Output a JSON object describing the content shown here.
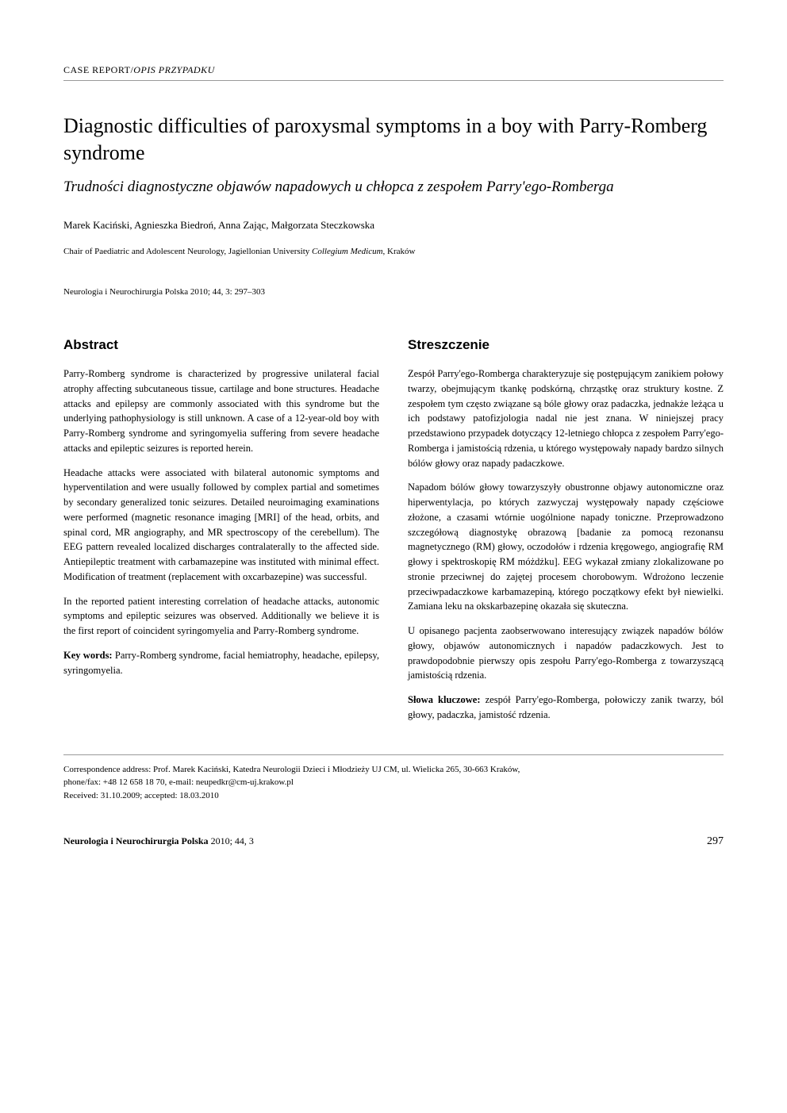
{
  "header": {
    "case_report": "CASE REPORT/",
    "opis": "OPIS PRZYPADKU"
  },
  "title": "Diagnostic difficulties of paroxysmal symptoms in a boy with Parry-Romberg syndrome",
  "subtitle": "Trudności diagnostyczne objawów napadowych u chłopca z zespołem Parry'ego-Romberga",
  "authors": "Marek Kaciński, Agnieszka Biedroń, Anna Zając, Małgorzata Steczkowska",
  "affiliation_prefix": "Chair of Paediatric and Adolescent Neurology, Jagiellonian University ",
  "affiliation_italic": "Collegium Medicum",
  "affiliation_suffix": ", Kraków",
  "journal_ref": "Neurologia i Neurochirurgia Polska 2010; 44, 3: 297–303",
  "abstract": {
    "heading": "Abstract",
    "p1": "Parry-Romberg syndrome is characterized by progressive unilateral facial atrophy affecting subcutaneous tissue, cartilage and bone structures. Headache attacks and epilepsy are commonly associated with this syndrome but the underlying pathophysiology is still unknown. A case of a 12-year-old boy with Parry-Romberg syndrome and syringomyelia suffering from severe headache attacks and epileptic seizures is reported herein.",
    "p2": "Headache attacks were associated with bilateral autonomic symptoms and hyperventilation and were usually followed by complex partial and sometimes by secondary generalized tonic seizures. Detailed neuroimaging examinations were performed (magnetic resonance imaging [MRI] of the head, orbits, and spinal cord, MR angiography, and MR spectroscopy of the cerebellum). The EEG pattern revealed localized discharges contralaterally to the affected side. Antiepileptic treatment with carbamazepine was instituted with minimal effect. Modification of treatment (replacement with oxcarbazepine) was successful.",
    "p3": "In the reported patient interesting correlation of headache attacks, autonomic symptoms and epileptic seizures was observed. Additionally we believe it is the first report of coincident syringomyelia and Parry-Romberg syndrome.",
    "keywords_label": "Key words:",
    "keywords": " Parry-Romberg syndrome, facial hemiatrophy, headache, epilepsy, syringomyelia."
  },
  "streszczenie": {
    "heading": "Streszczenie",
    "p1": "Zespół Parry'ego-Romberga charakteryzuje się postępującym zanikiem połowy twarzy, obejmującym tkankę podskórną, chrząstkę oraz struktury kostne. Z zespołem tym często związane są bóle głowy oraz padaczka, jednakże leżąca u ich podstawy patofizjologia nadal nie jest znana. W niniejszej pracy przedstawiono przypadek dotyczący 12-letniego chłopca z zespołem Parry'ego-Romberga i jamistością rdzenia, u którego występowały napady bardzo silnych bólów głowy oraz napady padaczkowe.",
    "p2": "Napadom bólów głowy towarzyszyły obustronne objawy autonomiczne oraz hiperwentylacja, po których zazwyczaj występowały napady częściowe złożone, a czasami wtórnie uogólnione napady toniczne. Przeprowadzono szczegółową diagnostykę obrazową [badanie za pomocą rezonansu magnetycznego (RM) głowy, oczodołów i rdzenia kręgowego, angiografię RM głowy i spektroskopię RM móżdżku]. EEG wykazał zmiany zlokalizowane po stronie przeciwnej do zajętej procesem chorobowym. Wdrożono leczenie przeciwpadaczkowe karbamazepiną, którego początkowy efekt był niewielki. Zamiana leku na okskarbazepinę okazała się skuteczna.",
    "p3": "U opisanego pacjenta zaobserwowano interesujący związek napadów bólów głowy, objawów autonomicznych i napadów padaczkowych. Jest to prawdopodobnie pierwszy opis zespołu Parry'ego-Romberga z towarzyszącą jamistością rdzenia.",
    "keywords_label": "Słowa kluczowe:",
    "keywords": " zespół Parry'ego-Romberga, połowiczy zanik twarzy, ból głowy, padaczka, jamistość rdzenia."
  },
  "correspondence": {
    "line1": "Correspondence address: Prof. Marek Kaciński, Katedra Neurologii Dzieci i Młodzieży UJ CM, ul. Wielicka 265, 30-663 Kraków,",
    "line2": "phone/fax: +48 12 658 18 70, e-mail: neupedkr@cm-uj.krakow.pl",
    "line3": "Received: 31.10.2009; accepted: 18.03.2010"
  },
  "footer": {
    "journal_bold": "Neurologia i Neurochirurgia Polska",
    "journal_rest": " 2010; 44, 3",
    "page": "297"
  }
}
